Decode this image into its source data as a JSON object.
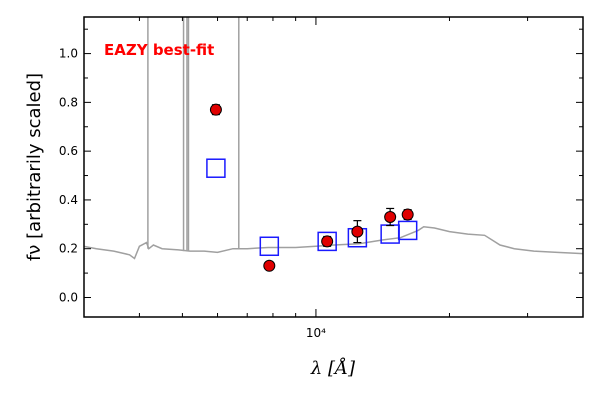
{
  "chart_data": {
    "type": "scatter",
    "title": "",
    "xlabel": "λ [Å]",
    "ylabel": "fν [arbitrarily scaled]",
    "xscale": "log",
    "xlim": [
      3000,
      40000
    ],
    "ylim": [
      -0.08,
      1.15
    ],
    "xticks": [
      {
        "value": 10000,
        "label": "10⁴"
      }
    ],
    "yticks": [
      {
        "value": 0.0,
        "label": "0.0"
      },
      {
        "value": 0.2,
        "label": "0.2"
      },
      {
        "value": 0.4,
        "label": "0.4"
      },
      {
        "value": 0.6,
        "label": "0.6"
      },
      {
        "value": 0.8,
        "label": "0.8"
      },
      {
        "value": 1.0,
        "label": "1.0"
      }
    ],
    "grid": false,
    "annotation": {
      "text": "EAZY best-fit",
      "color": "#ff0000"
    },
    "series": [
      {
        "kind": "observed-flux",
        "color": "#e00000",
        "marker": "circle",
        "points": [
          {
            "x": 5950,
            "y": 0.77,
            "err": 0.02
          },
          {
            "x": 7850,
            "y": 0.13,
            "err": 0.01
          },
          {
            "x": 10600,
            "y": 0.23,
            "err": 0.02
          },
          {
            "x": 12400,
            "y": 0.27,
            "err": 0.045
          },
          {
            "x": 14700,
            "y": 0.33,
            "err": 0.035
          },
          {
            "x": 16100,
            "y": 0.34,
            "err": 0.02
          }
        ]
      },
      {
        "kind": "model-photometry",
        "color": "#1a1aff",
        "marker": "square",
        "points": [
          {
            "x": 5950,
            "y": 0.53
          },
          {
            "x": 7850,
            "y": 0.21
          },
          {
            "x": 10600,
            "y": 0.23
          },
          {
            "x": 12400,
            "y": 0.245
          },
          {
            "x": 14700,
            "y": 0.26
          },
          {
            "x": 16100,
            "y": 0.275
          }
        ]
      },
      {
        "kind": "template",
        "color": "#a0a0a0",
        "marker": "line",
        "points": [
          {
            "x": 3000,
            "y": 0.21
          },
          {
            "x": 3200,
            "y": 0.2
          },
          {
            "x": 3500,
            "y": 0.19
          },
          {
            "x": 3800,
            "y": 0.175
          },
          {
            "x": 3900,
            "y": 0.16
          },
          {
            "x": 4000,
            "y": 0.21
          },
          {
            "x": 4150,
            "y": 0.225
          },
          {
            "x": 4200,
            "y": 0.2
          },
          {
            "x": 4300,
            "y": 0.215
          },
          {
            "x": 4500,
            "y": 0.2
          },
          {
            "x": 4900,
            "y": 0.195
          },
          {
            "x": 5200,
            "y": 0.19
          },
          {
            "x": 5600,
            "y": 0.19
          },
          {
            "x": 6000,
            "y": 0.185
          },
          {
            "x": 6500,
            "y": 0.2
          },
          {
            "x": 7000,
            "y": 0.2
          },
          {
            "x": 7800,
            "y": 0.205
          },
          {
            "x": 9000,
            "y": 0.205
          },
          {
            "x": 10000,
            "y": 0.21
          },
          {
            "x": 11000,
            "y": 0.215
          },
          {
            "x": 12500,
            "y": 0.22
          },
          {
            "x": 14000,
            "y": 0.235
          },
          {
            "x": 15500,
            "y": 0.245
          },
          {
            "x": 17000,
            "y": 0.275
          },
          {
            "x": 17500,
            "y": 0.29
          },
          {
            "x": 18500,
            "y": 0.285
          },
          {
            "x": 20000,
            "y": 0.27
          },
          {
            "x": 22000,
            "y": 0.26
          },
          {
            "x": 24000,
            "y": 0.255
          },
          {
            "x": 25000,
            "y": 0.235
          },
          {
            "x": 26000,
            "y": 0.215
          },
          {
            "x": 28000,
            "y": 0.2
          },
          {
            "x": 31000,
            "y": 0.19
          },
          {
            "x": 35000,
            "y": 0.185
          },
          {
            "x": 40000,
            "y": 0.18
          }
        ],
        "emission_lines": [
          {
            "x": 4180,
            "ymin": 0.2,
            "ymax": 1.15
          },
          {
            "x": 5030,
            "ymin": 0.19,
            "ymax": 1.15
          },
          {
            "x": 5120,
            "ymin": 0.19,
            "ymax": 1.15
          },
          {
            "x": 5160,
            "ymin": 0.19,
            "ymax": 1.15
          },
          {
            "x": 6700,
            "ymin": 0.2,
            "ymax": 1.15
          }
        ]
      }
    ]
  }
}
